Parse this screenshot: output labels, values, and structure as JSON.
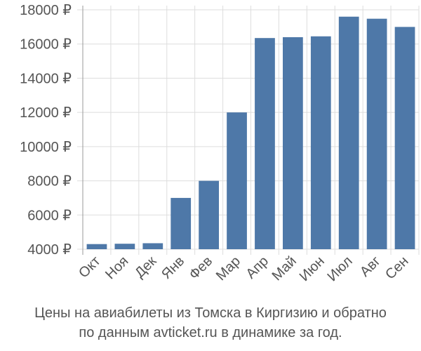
{
  "caption": {
    "line1": "Цены на авиабилеты из Томска в Киргизию и обратно",
    "line2": "по данным avticket.ru в динамике за год."
  },
  "colors": {
    "bar": "#4e78a8",
    "grid": "#dddddd",
    "axis": "#999999",
    "text": "#555555",
    "background": "#ffffff"
  },
  "chart_data": {
    "type": "bar",
    "categories": [
      "Окт",
      "Ноя",
      "Дек",
      "Янв",
      "Фев",
      "Мар",
      "Апр",
      "Май",
      "Июн",
      "Июл",
      "Авг",
      "Сен"
    ],
    "values": [
      4300,
      4320,
      4350,
      7000,
      8000,
      12000,
      16350,
      16400,
      16450,
      17600,
      17480,
      17000
    ],
    "y_ticks": [
      4000,
      6000,
      8000,
      10000,
      12000,
      14000,
      16000,
      18000
    ],
    "y_tick_labels": [
      "4000 ₽",
      "6000 ₽",
      "8000 ₽",
      "10000 ₽",
      "12000 ₽",
      "14000 ₽",
      "16000 ₽",
      "18000 ₽"
    ],
    "ylim": [
      3500,
      18000
    ],
    "grid": true,
    "title": "",
    "xlabel": "",
    "ylabel": ""
  }
}
